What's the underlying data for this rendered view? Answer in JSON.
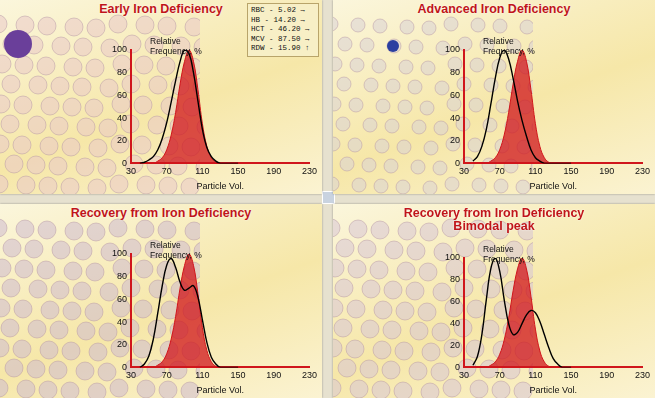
{
  "chart_data": [
    {
      "type": "line",
      "title": "Early Iron Deficiency",
      "x_label": "Particle Vol.",
      "y_label": "Relative Frequency, %",
      "annotations": [
        "RBC - 5.02 →",
        "HB - 14.20 →",
        "HCT - 46.20 →",
        "MCV - 87.50 →",
        "RDW - 15.90 ↑"
      ],
      "x": [
        40,
        45,
        50,
        55,
        60,
        65,
        70,
        75,
        80,
        85,
        90,
        95,
        100,
        105,
        110,
        115,
        120,
        125,
        130,
        135,
        140,
        145,
        150
      ],
      "series": [
        {
          "type": "line",
          "color": "#000000",
          "marker": "none",
          "line_style": "solid",
          "values": [
            0,
            1,
            3,
            6,
            12,
            22,
            36,
            54,
            73,
            90,
            100,
            97,
            80,
            55,
            30,
            14,
            6,
            2,
            0,
            0,
            0,
            0,
            0
          ]
        },
        {
          "type": "area",
          "color": "#d0161c",
          "marker": "none",
          "line_style": "solid",
          "values": [
            0,
            0,
            0,
            0,
            2,
            5,
            12,
            25,
            45,
            70,
            90,
            100,
            90,
            65,
            35,
            15,
            5,
            1,
            0,
            0,
            0,
            0,
            0
          ]
        }
      ],
      "xlim": [
        30,
        230
      ],
      "xticks": [
        30,
        70,
        110,
        150,
        190,
        230
      ],
      "ylim": [
        0,
        100
      ],
      "yticks": [
        0,
        20,
        40,
        60,
        80,
        100
      ],
      "grid": false
    },
    {
      "type": "line",
      "title": "Advanced Iron Deficiency",
      "x_label": "Particle Vol.",
      "y_label": "Relative Frequency, %",
      "x": [
        40,
        45,
        50,
        55,
        60,
        65,
        70,
        75,
        80,
        85,
        90,
        95,
        100,
        105,
        110,
        115,
        120,
        125,
        130,
        135,
        140,
        145,
        150
      ],
      "series": [
        {
          "type": "line",
          "color": "#000000",
          "marker": "none",
          "line_style": "solid",
          "values": [
            2,
            6,
            15,
            30,
            52,
            75,
            93,
            100,
            92,
            75,
            55,
            38,
            24,
            12,
            5,
            2,
            0,
            0,
            0,
            0,
            0,
            0,
            0
          ]
        },
        {
          "type": "area",
          "color": "#d0161c",
          "marker": "none",
          "line_style": "solid",
          "values": [
            0,
            0,
            0,
            0,
            2,
            5,
            12,
            25,
            45,
            70,
            90,
            100,
            90,
            65,
            35,
            15,
            5,
            1,
            0,
            0,
            0,
            0,
            0
          ]
        }
      ],
      "xlim": [
        30,
        230
      ],
      "xticks": [
        30,
        70,
        110,
        150,
        190,
        230
      ],
      "ylim": [
        0,
        100
      ],
      "yticks": [
        0,
        20,
        40,
        60,
        80,
        100
      ],
      "grid": false
    },
    {
      "type": "line",
      "title": "Recovery from Iron Deficiency",
      "x_label": "Particle Vol.",
      "y_label": "Relative Frequency, %",
      "x": [
        40,
        45,
        50,
        55,
        60,
        65,
        70,
        75,
        80,
        85,
        90,
        95,
        100,
        105,
        110,
        115,
        120,
        125,
        130,
        135,
        140,
        145,
        150
      ],
      "series": [
        {
          "type": "line",
          "color": "#000000",
          "marker": "none",
          "line_style": "solid",
          "values": [
            0,
            3,
            10,
            25,
            48,
            72,
            90,
            96,
            88,
            75,
            68,
            70,
            72,
            62,
            42,
            22,
            9,
            3,
            0,
            0,
            0,
            0,
            0
          ]
        },
        {
          "type": "area",
          "color": "#d0161c",
          "marker": "none",
          "line_style": "solid",
          "values": [
            0,
            0,
            0,
            0,
            2,
            5,
            12,
            25,
            45,
            70,
            90,
            100,
            90,
            65,
            35,
            15,
            5,
            1,
            0,
            0,
            0,
            0,
            0
          ]
        }
      ],
      "xlim": [
        30,
        230
      ],
      "xticks": [
        30,
        70,
        110,
        150,
        190,
        230
      ],
      "ylim": [
        0,
        100
      ],
      "yticks": [
        0,
        20,
        40,
        60,
        80,
        100
      ],
      "grid": false
    },
    {
      "type": "line",
      "title": "Recovery from Iron Deficiency",
      "subtitle": "Bimodal peak",
      "x_label": "Particle Vol.",
      "y_label": "Relative Frequency, %",
      "x": [
        40,
        45,
        50,
        55,
        60,
        65,
        70,
        75,
        80,
        85,
        90,
        95,
        100,
        105,
        110,
        115,
        120,
        125,
        130,
        135,
        140,
        145,
        150
      ],
      "series": [
        {
          "type": "line",
          "color": "#000000",
          "marker": "none",
          "line_style": "solid",
          "values": [
            2,
            10,
            30,
            62,
            90,
            100,
            88,
            62,
            40,
            30,
            32,
            40,
            48,
            52,
            50,
            42,
            30,
            18,
            8,
            3,
            0,
            0,
            0
          ]
        },
        {
          "type": "area",
          "color": "#d0161c",
          "marker": "none",
          "line_style": "solid",
          "values": [
            0,
            0,
            0,
            0,
            2,
            5,
            12,
            25,
            45,
            70,
            90,
            100,
            90,
            65,
            35,
            15,
            5,
            1,
            0,
            0,
            0,
            0,
            0
          ]
        }
      ],
      "xlim": [
        30,
        230
      ],
      "xticks": [
        30,
        70,
        110,
        150,
        190,
        230
      ],
      "ylim": [
        0,
        100
      ],
      "yticks": [
        0,
        20,
        40,
        60,
        80,
        100
      ],
      "grid": false
    }
  ]
}
